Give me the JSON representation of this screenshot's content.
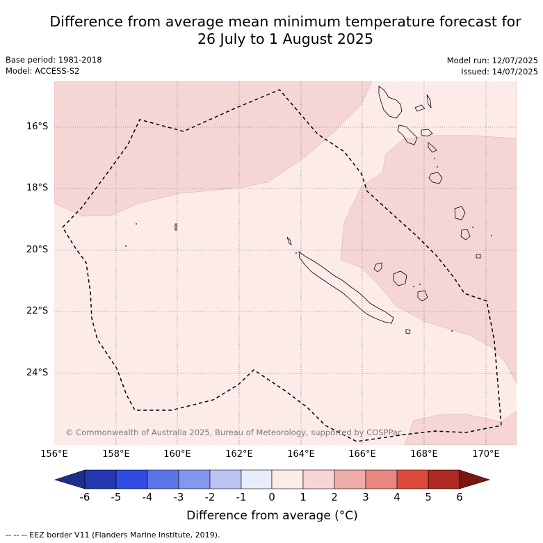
{
  "title_line1": "Difference from average mean minimum temperature forecast for",
  "title_line2": "26 July to 1 August 2025",
  "base_period": "Base period: 1981-2018",
  "model": "Model: ACCESS-S2",
  "model_run": "Model run: 12/07/2025",
  "issued": "Issued: 14/07/2025",
  "copyright": "© Commonwealth of Australia 2025, Bureau of Meteorology, supported by COSPPac",
  "lat_labels": [
    "16°S",
    "18°S",
    "20°S",
    "22°S",
    "24°S"
  ],
  "lon_labels": [
    "156°E",
    "158°E",
    "160°E",
    "162°E",
    "164°E",
    "166°E",
    "168°E",
    "170°E"
  ],
  "colorbar": {
    "title": "Difference from average (°C)",
    "tick_labels": [
      "-6",
      "-5",
      "-4",
      "-3",
      "-2",
      "-1",
      "0",
      "1",
      "2",
      "3",
      "4",
      "5",
      "6"
    ],
    "ticks": [
      -6,
      -5,
      -4,
      -3,
      -2,
      -1,
      0,
      1,
      2,
      3,
      4,
      5,
      6
    ],
    "colors": [
      "#1d2e8f",
      "#2437b0",
      "#2f4ce0",
      "#5b74e8",
      "#8597ec",
      "#bcc4f4",
      "#e8ebfa",
      "#fcebe8",
      "#f5d6d4",
      "#efada8",
      "#e88880",
      "#dc4a3d",
      "#ac2a22",
      "#7a1712"
    ],
    "extend": "both"
  },
  "footnote": "--  --  -- EEZ border V11 (Flanders Marine Institute, 2019).",
  "colors": {
    "anomaly_0_1": "#fcebe8",
    "anomaly_1_2": "#f5d6d4",
    "eez_border": "#000000",
    "grid": "#555555"
  }
}
